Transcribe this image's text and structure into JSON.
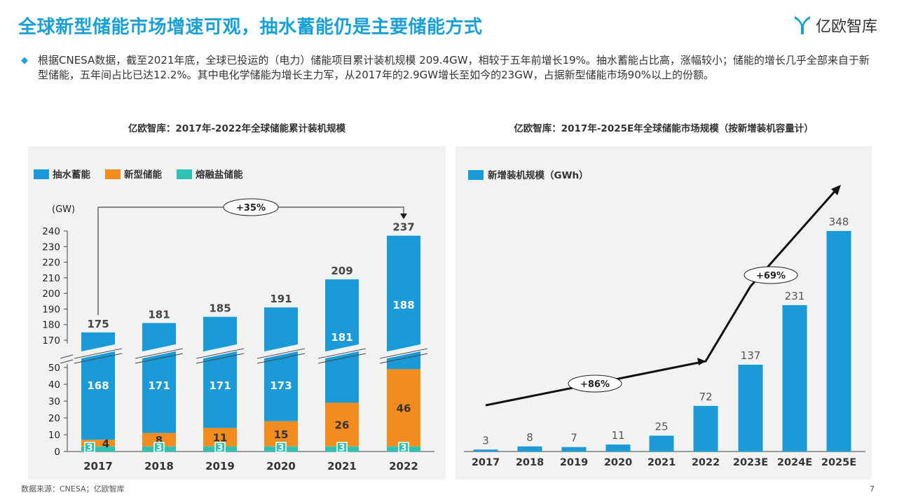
{
  "header": {
    "title": "全球新型储能市场增速可观，抽水蓄能仍是主要储能方式",
    "logo_text": "亿欧智库"
  },
  "summary": "根据CNESA数据，截至2021年底，全球已投运的（电力）储能项目累计装机规模 209.4GW，相较于五年前增长19%。抽水蓄能占比高，涨幅较小；储能的增长几乎全部来自于新型储能，五年间占比已达12.2%。其中电化学储能为增长主力军，从2017年的2.9GW增长至如今的23GW，占据新型储能市场90%以上的份额。",
  "footer": {
    "source": "数据来源：CNESA；亿欧智库",
    "page": "7"
  },
  "chart_data": [
    {
      "type": "bar",
      "title": "亿欧智库：2017年-2022年全球储能累计装机规模",
      "unit_label": "(GW)",
      "categories": [
        "2017",
        "2018",
        "2019",
        "2020",
        "2021",
        "2022"
      ],
      "stacked": true,
      "series": [
        {
          "name": "抽水蓄能",
          "values": [
            168,
            171,
            171,
            173,
            181,
            188
          ],
          "color": "#1a9bd7"
        },
        {
          "name": "新型储能",
          "values": [
            4,
            8,
            11,
            15,
            26,
            46
          ],
          "color": "#f28c1f"
        },
        {
          "name": "熔融盐储能",
          "values": [
            3,
            3,
            3,
            3,
            3,
            3
          ],
          "color": "#2cc3b5"
        }
      ],
      "totals": [
        175,
        181,
        185,
        191,
        209,
        237
      ],
      "axis_break": true,
      "y_lower_ticks": [
        0,
        10,
        20,
        30,
        40,
        50
      ],
      "y_upper_ticks": [
        170,
        180,
        190,
        200,
        210,
        220,
        230,
        240
      ],
      "annotation": "+35%",
      "legend_position": "top-left"
    },
    {
      "type": "bar",
      "title": "亿欧智库：2017年-2025E年全球储能市场规模（按新增装机容量计）",
      "categories": [
        "2017",
        "2018",
        "2019",
        "2020",
        "2021",
        "2022",
        "2023E",
        "2024E",
        "2025E"
      ],
      "series": [
        {
          "name": "新增装机规模（GWh）",
          "values": [
            3,
            8,
            7,
            11,
            25,
            72,
            137,
            231,
            348
          ],
          "color": "#1a9bd7"
        }
      ],
      "annotations": [
        "+86%",
        "+69%"
      ],
      "legend_position": "top-left"
    }
  ]
}
